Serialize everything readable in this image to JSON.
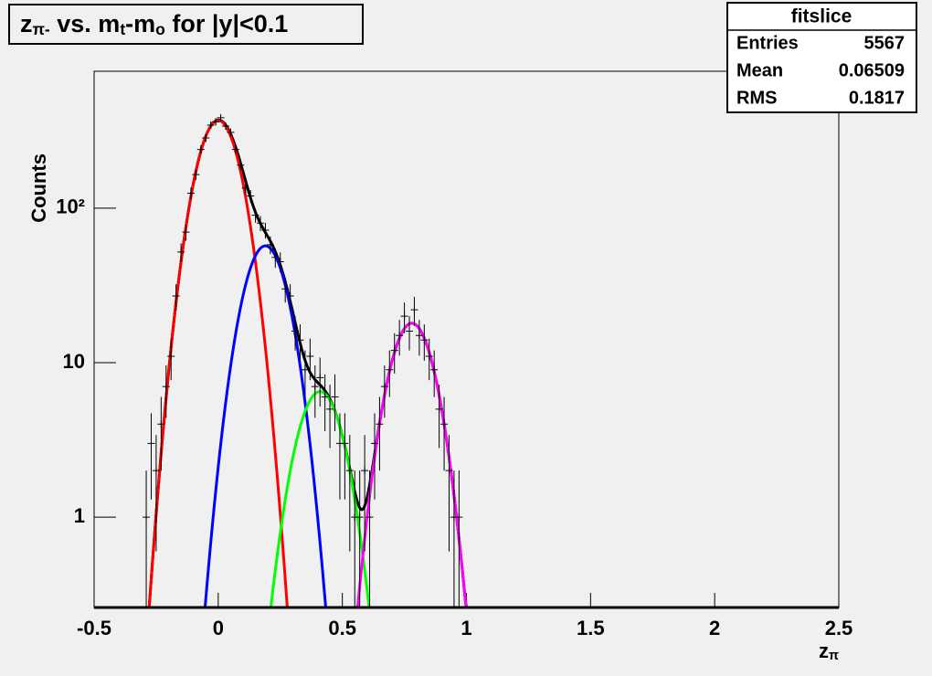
{
  "chart_data": {
    "type": "errorbar",
    "title": [
      {
        "text": "z"
      },
      {
        "text": "π-",
        "sub": true
      },
      {
        "text": " vs. m"
      },
      {
        "text": "t",
        "sub": true
      },
      {
        "text": "-m"
      },
      {
        "text": "o",
        "sub": true
      },
      {
        "text": " for |y|<0.1"
      }
    ],
    "x_label": [
      {
        "text": "z"
      },
      {
        "text": "π",
        "sub": true
      }
    ],
    "y_label": "Counts",
    "log_y": true,
    "xlim": [
      -0.5,
      2.5
    ],
    "xticks": [
      -0.5,
      0,
      0.5,
      1,
      1.5,
      2,
      2.5
    ],
    "ylim": [
      0.26,
      770
    ],
    "yticks": [
      1,
      10,
      {
        "value": 100,
        "label": "10²"
      }
    ],
    "color": "#000000",
    "x": [
      -0.29,
      -0.27,
      -0.25,
      -0.23,
      -0.21,
      -0.19,
      -0.17,
      -0.15,
      -0.13,
      -0.11,
      -0.09,
      -0.07,
      -0.05,
      -0.03,
      -0.01,
      0.01,
      0.03,
      0.05,
      0.07,
      0.09,
      0.11,
      0.13,
      0.15,
      0.17,
      0.19,
      0.21,
      0.23,
      0.25,
      0.27,
      0.29,
      0.31,
      0.33,
      0.35,
      0.37,
      0.39,
      0.41,
      0.43,
      0.45,
      0.47,
      0.49,
      0.51,
      0.53,
      0.55,
      0.57,
      0.59,
      0.61,
      0.63,
      0.65,
      0.67,
      0.69,
      0.71,
      0.73,
      0.75,
      0.77,
      0.79,
      0.81,
      0.83,
      0.85,
      0.87,
      0.89,
      0.91,
      0.93,
      0.95,
      0.97
    ],
    "values": [
      1,
      3,
      2,
      4,
      7,
      11,
      27,
      52,
      70,
      125,
      165,
      240,
      285,
      345,
      362,
      385,
      340,
      310,
      240,
      190,
      135,
      120,
      90,
      80,
      72,
      58,
      48,
      45,
      30,
      27,
      16,
      14,
      9,
      11,
      7,
      8,
      6,
      5,
      6,
      3,
      3,
      2,
      1,
      1,
      2,
      1,
      3,
      4,
      7,
      9,
      12,
      15,
      20,
      16,
      22,
      15,
      14,
      11,
      9,
      5,
      4,
      2,
      1,
      1
    ],
    "errors": [
      1,
      1.7,
      1.4,
      2,
      2.6,
      3.3,
      5.2,
      7.2,
      8.4,
      11.2,
      12.8,
      15.5,
      16.9,
      18.6,
      19,
      19.6,
      18.4,
      17.6,
      15.5,
      13.8,
      11.6,
      11,
      9.5,
      8.9,
      8.5,
      7.6,
      6.9,
      6.7,
      5.5,
      5.2,
      4,
      3.7,
      3,
      3.3,
      2.6,
      2.8,
      2.4,
      2.2,
      2.4,
      1.7,
      1.7,
      1.4,
      1,
      1,
      1.4,
      1,
      1.7,
      2,
      2.6,
      3,
      3.5,
      3.9,
      4.5,
      4,
      4.7,
      3.9,
      3.7,
      3.3,
      3,
      2.2,
      2,
      1.4,
      1,
      1
    ],
    "fits": [
      {
        "color": "#ff0000",
        "amplitude": 370,
        "mean": 0,
        "sigma": 0.073,
        "range": [
          -0.3,
          0.3
        ]
      },
      {
        "color": "#0000ff",
        "amplitude": 57,
        "mean": 0.19,
        "sigma": 0.074,
        "range": [
          -0.13,
          0.44
        ]
      },
      {
        "color": "#00ff00",
        "amplitude": 6.5,
        "mean": 0.41,
        "sigma": 0.078,
        "range": [
          0.12,
          0.71
        ]
      },
      {
        "color": "#ff00ff",
        "amplitude": 18,
        "mean": 0.78,
        "sigma": 0.075,
        "range": [
          0.45,
          1.09
        ]
      }
    ],
    "total_fit": {
      "color": "#000000",
      "range": [
        -0.3,
        1.0
      ]
    },
    "stats": {
      "name": "fitslice",
      "rows": [
        {
          "label": "Entries",
          "value": 5567
        },
        {
          "label": "Mean",
          "value": 0.06509
        },
        {
          "label": "RMS",
          "value": 0.1817
        }
      ]
    }
  }
}
